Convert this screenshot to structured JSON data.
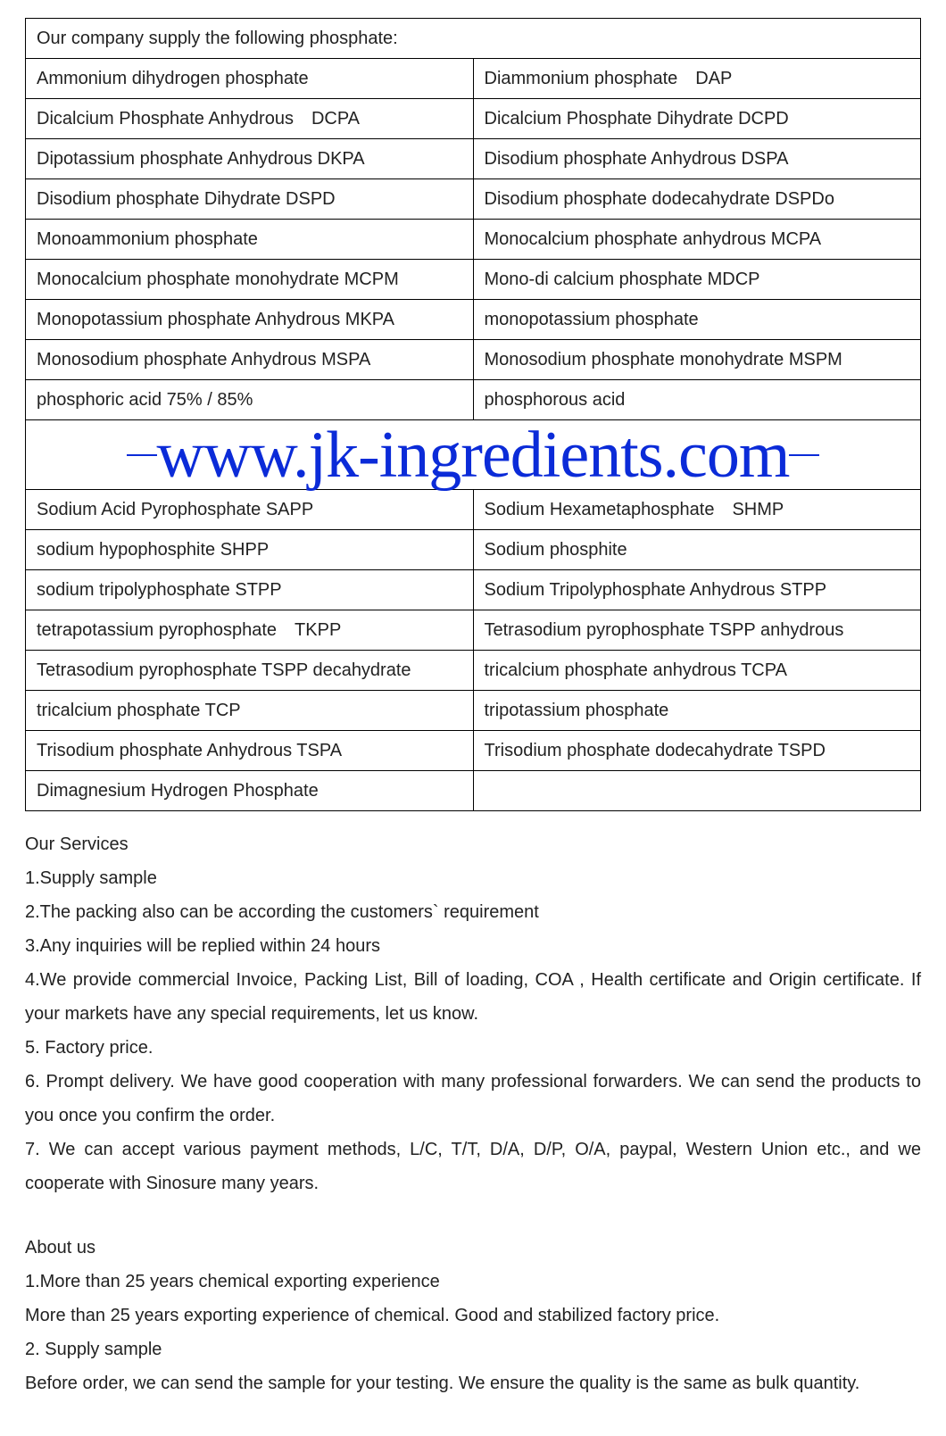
{
  "table": {
    "header": "Our company supply the following phosphate:",
    "rows_top": [
      [
        "Ammonium dihydrogen phosphate",
        "Diammonium phosphate DAP"
      ],
      [
        "Dicalcium Phosphate Anhydrous DCPA",
        "Dicalcium Phosphate Dihydrate DCPD"
      ],
      [
        "Dipotassium phosphate Anhydrous DKPA",
        "Disodium phosphate Anhydrous DSPA"
      ],
      [
        "Disodium phosphate Dihydrate DSPD",
        "Disodium phosphate dodecahydrate DSPDo"
      ],
      [
        "Monoammonium phosphate",
        "Monocalcium phosphate anhydrous MCPA"
      ],
      [
        "Monocalcium phosphate monohydrate MCPM",
        "Mono-di calcium phosphate MDCP"
      ],
      [
        "Monopotassium phosphate Anhydrous MKPA",
        "monopotassium phosphate"
      ],
      [
        "Monosodium phosphate Anhydrous MSPA",
        "Monosodium phosphate monohydrate MSPM"
      ],
      [
        "phosphoric acid 75% / 85%",
        "phosphorous acid"
      ]
    ],
    "watermark": "www.jk-ingredients.com",
    "rows_bottom": [
      [
        "Sodium Acid Pyrophosphate SAPP",
        "Sodium Hexametaphosphate SHMP"
      ],
      [
        "sodium hypophosphite SHPP",
        "Sodium phosphite"
      ],
      [
        "sodium tripolyphosphate STPP",
        "Sodium Tripolyphosphate Anhydrous STPP"
      ],
      [
        "tetrapotassium pyrophosphate TKPP",
        "Tetrasodium pyrophosphate TSPP anhydrous"
      ],
      [
        "Tetrasodium pyrophosphate TSPP decahydrate",
        "tricalcium phosphate anhydrous TCPA"
      ],
      [
        "tricalcium phosphate TCP",
        "tripotassium phosphate"
      ],
      [
        "Trisodium phosphate Anhydrous TSPA",
        "Trisodium phosphate dodecahydrate TSPD"
      ],
      [
        "Dimagnesium Hydrogen Phosphate",
        ""
      ]
    ]
  },
  "services": {
    "title": "Our Services",
    "lines": [
      "1.Supply sample",
      "2.The packing also can be according the customers` requirement",
      "3.Any inquiries will be replied within 24 hours",
      "4.We provide commercial Invoice, Packing List, Bill of loading, COA , Health certificate and Origin certificate. If your markets have any special requirements, let us know.",
      "5. Factory price.",
      "6. Prompt delivery. We have good cooperation with many professional forwarders. We can send the products to you once you confirm the order.",
      "7. We can accept various payment methods, L/C, T/T, D/A, D/P, O/A, paypal, Western Union etc., and we cooperate with Sinosure many years."
    ]
  },
  "about": {
    "title": "About us",
    "lines": [
      "1.More than 25 years chemical exporting experience",
      "More than 25 years exporting experience of chemical. Good and stabilized factory price.",
      "2. Supply sample",
      "Before order, we can send the sample for your testing. We ensure the quality is the same as bulk quantity."
    ]
  },
  "style": {
    "border_color": "#000000",
    "text_color": "#222222",
    "watermark_color": "#0b2bd8",
    "background": "#ffffff",
    "cell_fontsize": 20,
    "body_fontsize": 20,
    "watermark_fontsize": 74
  }
}
